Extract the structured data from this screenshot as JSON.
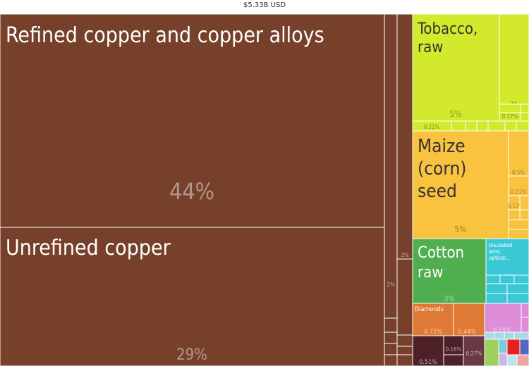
{
  "header": {
    "total": "$5.33B USD"
  },
  "chart_data": {
    "type": "treemap",
    "total_label": "$5.33B USD",
    "colors": {
      "metals": "#76402b",
      "vegetable_products": "#d2ea2b",
      "seeds": "#f9c33f",
      "textiles": "#4faf4f",
      "machines": "#3bc8d6",
      "stones": "#df7a36",
      "misc_pink": "#de8ed7",
      "dark": "#4e2128",
      "red": "#e8201f"
    },
    "tiles": [
      {
        "name": "Refined copper and copper alloys",
        "share": "44%",
        "group": "metals"
      },
      {
        "name": "Unrefined copper",
        "share": "29%",
        "group": "metals"
      },
      {
        "name": "",
        "share": "2%",
        "group": "metals"
      },
      {
        "name": "",
        "share": "2%",
        "group": "metals"
      },
      {
        "name": "Tobacco, raw",
        "share": "5%",
        "group": "vegetable_products"
      },
      {
        "name": "",
        "share": "2%",
        "group": "vegetable_products"
      },
      {
        "name": "",
        "share": "0.17%",
        "group": "vegetable_products"
      },
      {
        "name": "",
        "share": "0.21%",
        "group": "vegetable_products"
      },
      {
        "name": "Maize (corn) seed",
        "share": "5%",
        "group": "seeds"
      },
      {
        "name": "",
        "share": "0.5%",
        "group": "seeds"
      },
      {
        "name": "",
        "share": "0.21%",
        "group": "seeds"
      },
      {
        "name": "",
        "share": "0.13%",
        "group": "seeds"
      },
      {
        "name": "Cotton raw",
        "share": "3%",
        "group": "textiles"
      },
      {
        "name": "Insulated wire; optical...",
        "share": "0.92%",
        "group": "machines"
      },
      {
        "name": "Diamonds",
        "share": "0.72%",
        "group": "stones"
      },
      {
        "name": "",
        "share": "0.44%",
        "group": "stones"
      },
      {
        "name": "",
        "share": "0.55%",
        "group": "misc_pink"
      },
      {
        "name": "",
        "share": "0.51%",
        "group": "dark"
      },
      {
        "name": "",
        "share": "0.16%",
        "group": "dark"
      },
      {
        "name": "",
        "share": "0.27%",
        "group": "dark"
      }
    ]
  }
}
